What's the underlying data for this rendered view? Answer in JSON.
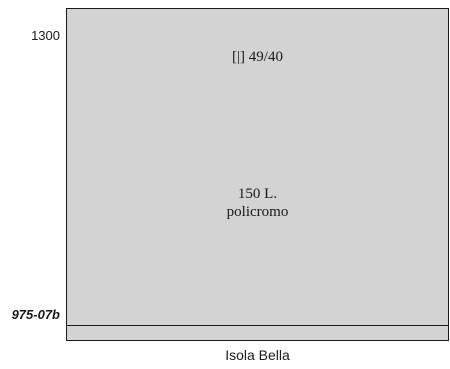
{
  "axis": {
    "top_label": "1300",
    "bottom_label": "975-07b"
  },
  "panel": {
    "top_text": "[|] 49/40",
    "center_line_1": "150 L.",
    "center_line_2": "policromo",
    "fill_color": "#d3d3d3"
  },
  "caption": "Isola Bella"
}
